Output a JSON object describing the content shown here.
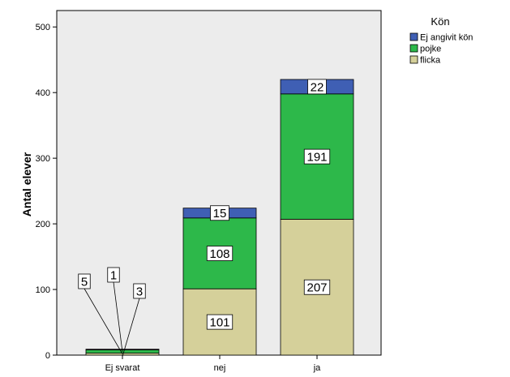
{
  "chart_data": {
    "type": "bar",
    "stacked": true,
    "categories": [
      "Ej svarat",
      "nej",
      "ja"
    ],
    "series": [
      {
        "name": "flicka",
        "color": "#d5d09a",
        "values": [
          3,
          101,
          207
        ]
      },
      {
        "name": "pojke",
        "color": "#2db84a",
        "values": [
          5,
          108,
          191
        ]
      },
      {
        "name": "Ej angivit kön",
        "color": "#3f5fb4",
        "values": [
          1,
          15,
          22
        ]
      }
    ],
    "xlabel": "",
    "ylabel": "Antal elever",
    "ylim": [
      0,
      525
    ],
    "yticks": [
      0,
      100,
      200,
      300,
      400,
      500
    ],
    "legend": {
      "title": "Kön",
      "position": "top-right",
      "order": [
        "Ej angivit kön",
        "pojke",
        "flicka"
      ]
    },
    "background": "#ececec",
    "grid": false,
    "callout_labels_for_small_values": true
  }
}
